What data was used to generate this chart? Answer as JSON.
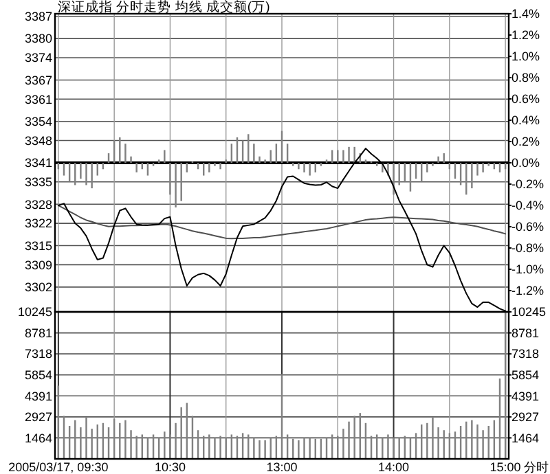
{
  "chart_data": [
    {
      "type": "line",
      "title": "深证成指  分时走势  均线  成交额(万)",
      "categories": [
        null,
        null,
        null,
        null,
        null,
        null,
        null,
        null,
        null,
        null,
        null,
        null,
        null,
        null,
        null,
        null,
        null,
        null,
        null,
        null,
        null,
        null,
        null,
        null,
        null,
        null,
        null,
        null,
        null,
        null,
        null,
        null,
        null,
        null,
        null,
        null,
        null,
        null,
        null,
        null,
        null,
        null,
        null,
        null,
        null,
        null,
        null,
        null,
        null,
        null,
        null,
        null,
        null,
        null,
        null,
        null,
        null,
        null,
        null,
        null,
        null,
        null,
        null,
        null,
        null,
        null,
        null,
        null,
        null,
        null,
        null,
        null,
        null,
        null,
        null,
        null,
        null,
        null,
        null,
        null,
        null
      ],
      "ylim": [
        3294.2,
        3387.8
      ],
      "yticks": [
        3387,
        3380,
        3374,
        3367,
        3361,
        3354,
        3348,
        3341,
        3335,
        3328,
        3322,
        3315,
        3309,
        3302
      ],
      "y2lim": [
        -1.4,
        1.4
      ],
      "y2ticks": [
        {
          "value": 1.4,
          "label": "1.4%"
        },
        {
          "value": 1.2,
          "label": "1.2%"
        },
        {
          "value": 1.0,
          "label": "1.0%"
        },
        {
          "value": 0.8,
          "label": "0.8%"
        },
        {
          "value": 0.6,
          "label": "0.6%"
        },
        {
          "value": 0.4,
          "label": "0.4%"
        },
        {
          "value": 0.2,
          "label": "0.2%"
        },
        {
          "value": 0.0,
          "label": "0.0%"
        },
        {
          "value": -0.2,
          "label": "-0.2%"
        },
        {
          "value": -0.4,
          "label": "-0.4%"
        },
        {
          "value": -0.6,
          "label": "-0.6%"
        },
        {
          "value": -0.8,
          "label": "-0.8%"
        },
        {
          "value": -1.0,
          "label": "-1.0%"
        },
        {
          "value": -1.2,
          "label": "-1.2%"
        },
        {
          "value": -1.4,
          "label": null
        }
      ],
      "grid": true,
      "tick_labels": "y",
      "ref_lines": [
        {
          "axis": "y",
          "value": 3341,
          "color": "#000000"
        }
      ],
      "series": [
        {
          "type": "bar",
          "color": "#808080",
          "base": [
            3341,
            3341,
            3341,
            3341,
            3341,
            3341,
            3341,
            3341,
            3341,
            3341,
            3341,
            3341,
            3341,
            3341,
            3341,
            3341,
            3341,
            3341,
            3341,
            3341,
            3341,
            3341,
            3341,
            3341,
            3341,
            3341,
            3341,
            3341,
            3341,
            3341,
            3341,
            3341,
            3341,
            3341,
            3341,
            3341,
            3341,
            3341,
            3341,
            3341,
            3341,
            3341,
            3341,
            3341,
            3341,
            3341,
            3341,
            3341,
            3341,
            3341,
            3341,
            3341,
            3341,
            3341,
            3341,
            3341,
            3341,
            3341,
            3341,
            3341,
            3341,
            3341,
            3341,
            3341,
            3341,
            3341,
            3341,
            3341,
            3341,
            3341,
            3341,
            3341,
            3341,
            3341,
            3341,
            3341,
            3341,
            3341,
            3341,
            3341,
            3341
          ],
          "values": [
            -2,
            -4,
            -6,
            -7,
            -5,
            -7,
            -8,
            -4,
            -2,
            3,
            7,
            8,
            6,
            2,
            -3,
            -2,
            -4,
            -1,
            1,
            4,
            -10,
            -14,
            -12,
            -3,
            0.5,
            -2,
            -4,
            -3,
            -1,
            -2,
            1,
            6,
            8,
            7,
            9,
            6,
            2,
            1,
            4,
            6,
            10,
            6,
            -1,
            -2,
            -3,
            -4,
            -3,
            -1,
            1,
            4,
            4,
            4,
            5,
            5,
            3,
            1,
            0.5,
            -1,
            -3,
            -4,
            -10,
            -7,
            -6,
            -9,
            -5,
            -6,
            -3,
            -1,
            2,
            3,
            -2,
            -5,
            -7,
            -10,
            -8,
            -4,
            -3,
            -1,
            -2,
            -3,
            -2
          ]
        },
        {
          "color": "#505050",
          "values": [
            3327.6,
            3326.7,
            3325.7,
            3324.8,
            3323.8,
            3323,
            3322.5,
            3321.9,
            3321.4,
            3321,
            3321.1,
            3321.1,
            3321.2,
            3321.3,
            3321.3,
            3321.4,
            3321.5,
            3321.5,
            3321.6,
            3321.7,
            3321.5,
            3321.1,
            3320.6,
            3320.1,
            3319.6,
            3319.2,
            3318.9,
            3318.5,
            3318.1,
            3317.7,
            3317.3,
            3317.2,
            3317.3,
            3317.3,
            3317.4,
            3317.5,
            3317.5,
            3317.7,
            3318,
            3318.2,
            3318.4,
            3318.7,
            3318.9,
            3319.1,
            3319.4,
            3319.6,
            3319.8,
            3320.1,
            3320.3,
            3320.7,
            3321.1,
            3321.5,
            3321.9,
            3322.3,
            3322.7,
            3323.1,
            3323.3,
            3323.4,
            3323.6,
            3323.8,
            3323.9,
            3323.8,
            3323.7,
            3323.6,
            3323.5,
            3323.4,
            3323.3,
            3323.2,
            3322.9,
            3322.7,
            3322.4,
            3322.1,
            3321.8,
            3321.6,
            3321.3,
            3321,
            3320.5,
            3320.1,
            3319.6,
            3319.2,
            3318.7
          ]
        },
        {
          "color": "#000000",
          "values": [
            3327.6,
            3328.2,
            3325,
            3322,
            3320.5,
            3318,
            3314,
            3310.6,
            3311.1,
            3315.8,
            3321.4,
            3326,
            3326.7,
            3324,
            3321.7,
            3321.5,
            3321.4,
            3321.6,
            3321.7,
            3323.5,
            3324,
            3315,
            3307.8,
            3302.4,
            3304.9,
            3305.9,
            3306.3,
            3305.6,
            3304.2,
            3302.4,
            3306.1,
            3312,
            3317.5,
            3321.1,
            3321.4,
            3321.7,
            3322.7,
            3323.7,
            3326,
            3329.1,
            3333.5,
            3336.6,
            3336.8,
            3335.7,
            3334.6,
            3334.2,
            3334,
            3334.1,
            3334.9,
            3333.6,
            3333,
            3335.8,
            3338.4,
            3341,
            3343.2,
            3345.5,
            3343.8,
            3342.4,
            3340.7,
            3337.5,
            3333.5,
            3329.1,
            3325.8,
            3322.3,
            3318.7,
            3313.4,
            3309,
            3308.3,
            3312,
            3315,
            3312.8,
            3308.7,
            3304,
            3300,
            3296.8,
            3295.7,
            3297.2,
            3297.2,
            3296.2,
            3295.2,
            3294.5
          ]
        }
      ]
    },
    {
      "type": "bar",
      "xlabel": "分时",
      "categories": [
        "2005/03/17, 09:30",
        null,
        null,
        null,
        null,
        null,
        null,
        null,
        null,
        null,
        null,
        null,
        null,
        null,
        null,
        null,
        null,
        null,
        null,
        null,
        "10:30",
        null,
        null,
        null,
        null,
        null,
        null,
        null,
        null,
        null,
        null,
        null,
        null,
        null,
        null,
        null,
        null,
        null,
        null,
        null,
        "13:00",
        null,
        null,
        null,
        null,
        null,
        null,
        null,
        null,
        null,
        null,
        null,
        null,
        null,
        null,
        null,
        null,
        null,
        null,
        null,
        "14:00",
        null,
        null,
        null,
        null,
        null,
        null,
        null,
        null,
        null,
        null,
        null,
        null,
        null,
        null,
        null,
        null,
        null,
        null,
        null,
        "15:00"
      ],
      "ylim": [
        0,
        10245
      ],
      "yticks": [
        1464,
        2927,
        4391,
        5854,
        7318,
        8781,
        10245
      ],
      "y2lim": [
        0,
        10245
      ],
      "y2ticks": [
        1464,
        2927,
        4391,
        5854,
        7318,
        8781,
        10245
      ],
      "grid": true,
      "series": [
        {
          "color": "#808080",
          "values": [
            5100,
            3000,
            2300,
            2700,
            2200,
            2900,
            2100,
            2400,
            2500,
            2200,
            2800,
            2500,
            2700,
            2000,
            1600,
            1700,
            1500,
            1700,
            1500,
            1900,
            1700,
            2500,
            3600,
            3900,
            3000,
            2000,
            1600,
            1700,
            1500,
            1600,
            1500,
            1700,
            1600,
            1800,
            1700,
            1500,
            1300,
            1300,
            1500,
            1600,
            5900,
            1700,
            1400,
            1300,
            1500,
            1500,
            1400,
            1400,
            1500,
            1700,
            1600,
            2100,
            2600,
            3000,
            3200,
            2500,
            1600,
            1700,
            1500,
            1700,
            1500,
            1500,
            1600,
            1500,
            1800,
            2400,
            2500,
            2900,
            2200,
            2000,
            1800,
            1900,
            2300,
            2600,
            2700,
            2400,
            2000,
            2300,
            2700,
            5600,
            10200
          ]
        }
      ]
    }
  ]
}
